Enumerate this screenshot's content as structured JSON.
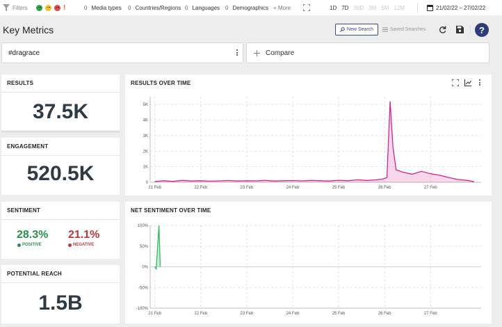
{
  "topbar": {
    "filters_label": "Filters",
    "media_types": {
      "count": "0",
      "label": "Media types"
    },
    "regions": {
      "count": "0",
      "label": "Countries/Regions"
    },
    "languages": {
      "count": "0",
      "label": "Languages"
    },
    "demographics": {
      "count": "0",
      "label": "Demographics"
    },
    "more": "+ More",
    "ranges": [
      "1D",
      "7D",
      "30D",
      "3M",
      "6M",
      "12M"
    ],
    "date_range": "21/02/22 – 27/02/22"
  },
  "header": {
    "title": "Key Metrics",
    "new_search": "New Search",
    "saved_searches": "Saved Searches"
  },
  "search": {
    "query": "#dragrace",
    "compare": "Compare"
  },
  "metrics": {
    "results": {
      "title": "RESULTS",
      "value": "37.5K"
    },
    "engagement": {
      "title": "ENGAGEMENT",
      "value": "520.5K"
    },
    "sentiment": {
      "title": "SENTIMENT",
      "positive_pct": "28.3%",
      "positive_label": "POSITIVE",
      "negative_pct": "21.1%",
      "negative_label": "NEGATIVE"
    },
    "reach": {
      "title": "POTENTIAL REACH",
      "value": "1.5B"
    }
  },
  "colors": {
    "positive": "#27914a",
    "negative": "#b53a3a",
    "results_line": "#d0268f",
    "sentiment_line": "#2ebd5c",
    "accent": "#2c3e7a"
  },
  "chart_data": [
    {
      "type": "area",
      "title": "RESULTS OVER TIME",
      "x_ticks": [
        "21 Feb",
        "22 Feb",
        "23 Feb",
        "24 Feb",
        "25 Feb",
        "26 Feb",
        "27 Feb"
      ],
      "y_ticks": [
        "0",
        "1K",
        "2K",
        "3K",
        "4K",
        "5K"
      ],
      "ylim": [
        0,
        5500
      ],
      "xlim": [
        -0.1,
        7.1
      ],
      "series": [
        {
          "x": [
            0,
            0.2,
            0.4,
            0.6,
            0.8,
            1.0,
            1.2,
            1.4,
            1.6,
            1.8,
            2.0,
            2.2,
            2.4,
            2.6,
            2.8,
            3.0,
            3.2,
            3.4,
            3.6,
            3.8,
            4.0,
            4.2,
            4.4,
            4.6,
            4.8,
            4.95,
            5.05,
            5.12,
            5.18,
            5.25,
            5.4,
            5.6,
            5.8,
            6.0,
            6.2,
            6.4,
            6.6,
            6.8,
            6.95
          ],
          "y": [
            50,
            100,
            60,
            120,
            80,
            100,
            70,
            90,
            110,
            80,
            100,
            90,
            120,
            80,
            100,
            110,
            90,
            120,
            100,
            80,
            130,
            100,
            160,
            120,
            150,
            200,
            300,
            5200,
            2300,
            800,
            650,
            520,
            700,
            550,
            450,
            300,
            180,
            120,
            40
          ]
        }
      ]
    },
    {
      "type": "line",
      "title": "NET SENTIMENT OVER TIME",
      "x_ticks": [
        "21 Feb",
        "22 Feb",
        "23 Feb",
        "24 Feb",
        "25 Feb",
        "26 Feb",
        "27 Feb"
      ],
      "y_ticks": [
        "100%",
        "50%",
        "0%",
        "-50%",
        "-100%"
      ],
      "ylim": [
        -100,
        100
      ],
      "xlim": [
        -0.1,
        7.1
      ],
      "series": [
        {
          "x": [
            0.0,
            0.03,
            0.06,
            0.09,
            0.12
          ],
          "y": [
            0,
            -5,
            45,
            100,
            0
          ]
        }
      ]
    }
  ]
}
